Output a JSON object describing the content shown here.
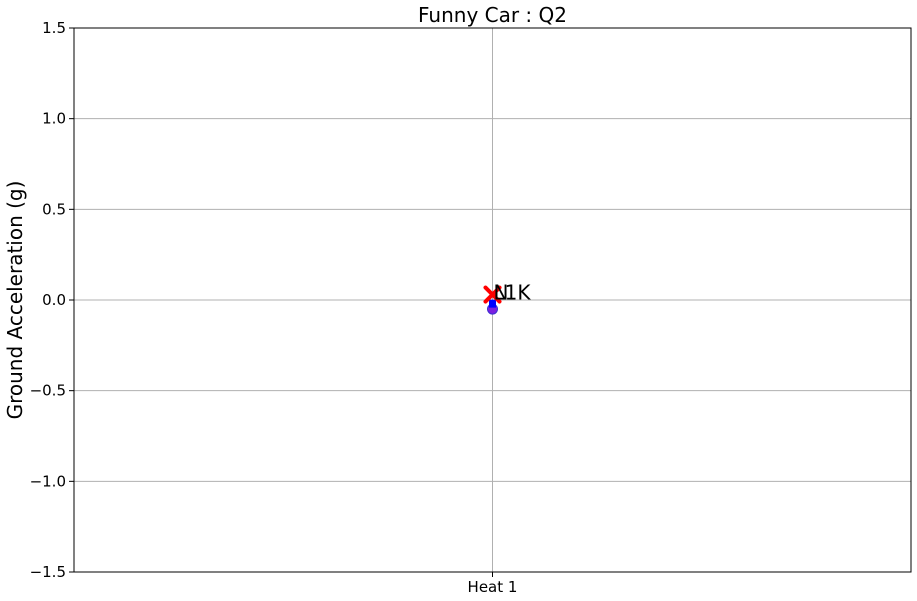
{
  "chart_data": {
    "type": "scatter",
    "title": "Funny Car : Q2",
    "xlabel": "",
    "ylabel": "Ground Acceleration (g)",
    "categories": [
      "Heat 1"
    ],
    "ylim": [
      -1.5,
      1.5
    ],
    "yticks": [
      -1.5,
      -1.0,
      -0.5,
      0.0,
      0.5,
      1.0,
      1.5
    ],
    "ytick_labels": [
      "−1.5",
      "−1.0",
      "−0.5",
      "0.0",
      "0.5",
      "1.0",
      "1.5"
    ],
    "grid": true,
    "series": [
      {
        "marker": "circle",
        "color": "#7b1fe0",
        "points": [
          {
            "x": "Heat 1",
            "y": -0.05
          }
        ]
      },
      {
        "marker": "square",
        "color": "#0000ff",
        "points": [
          {
            "x": "Heat 1",
            "y": -0.02
          }
        ]
      },
      {
        "marker": "x",
        "color": "#ff0000",
        "points": [
          {
            "x": "Heat 1",
            "y": 0.03
          }
        ]
      }
    ],
    "annotations": [
      {
        "text": "N",
        "x": "Heat 1",
        "y": 0.04
      },
      {
        "text": "L1K",
        "x": "Heat 1",
        "y": 0.04
      }
    ]
  }
}
